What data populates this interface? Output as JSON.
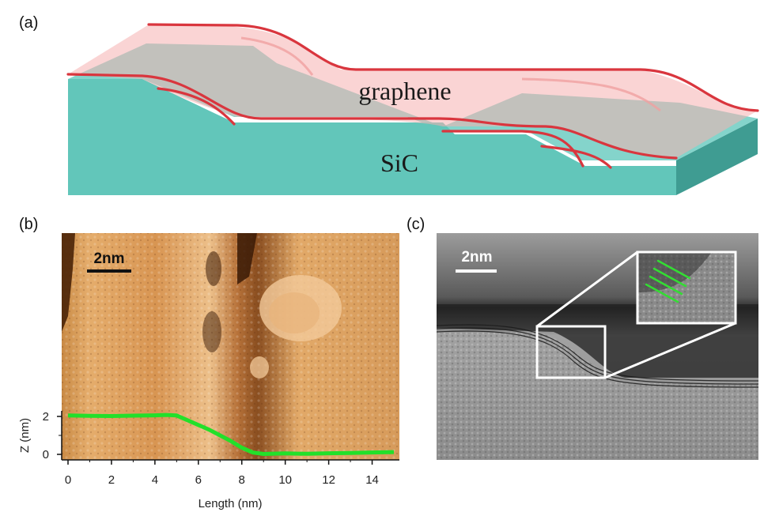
{
  "panels": {
    "a": {
      "label": "(a)",
      "layer_label": "graphene",
      "substrate_label": "SiC",
      "colors": {
        "sic_top": "#66c8bd",
        "sic_front": "#5fc4b8",
        "sic_side": "#3f9c92",
        "graphene": "#f5b8b8",
        "edge": "#d9363e"
      }
    },
    "b": {
      "label": "(b)",
      "scale_bar": "2nm",
      "colors": {
        "image_light": "#e6ae6e",
        "image_dark": "#3a1a06",
        "profile": "#22e02a"
      }
    },
    "c": {
      "label": "(c)",
      "scale_bar": "2nm",
      "colors": {
        "inset_frame": "#ffffff",
        "lattice_lines": "#33dd33"
      }
    }
  },
  "chart_data": {
    "type": "line",
    "title": "",
    "xlabel": "Length (nm)",
    "ylabel": "Z (nm)",
    "xlim": [
      0,
      15
    ],
    "ylim": [
      -0.1,
      2.2
    ],
    "x_ticks": [
      0,
      2,
      4,
      6,
      8,
      10,
      12,
      14
    ],
    "y_ticks": [
      0,
      2
    ],
    "grid": false,
    "legend": "none",
    "series": [
      {
        "color": "#22e02a",
        "x": [
          0,
          1,
          2,
          3,
          4,
          4.5,
          5,
          5.5,
          6,
          6.5,
          7,
          7.5,
          8,
          8.5,
          9,
          10,
          11,
          12,
          13,
          14,
          15
        ],
        "y": [
          2.05,
          2.03,
          2.02,
          2.04,
          2.06,
          2.08,
          2.05,
          1.8,
          1.55,
          1.3,
          1.0,
          0.7,
          0.35,
          0.1,
          0.02,
          0.05,
          0.03,
          0.06,
          0.07,
          0.1,
          0.12
        ]
      }
    ]
  }
}
